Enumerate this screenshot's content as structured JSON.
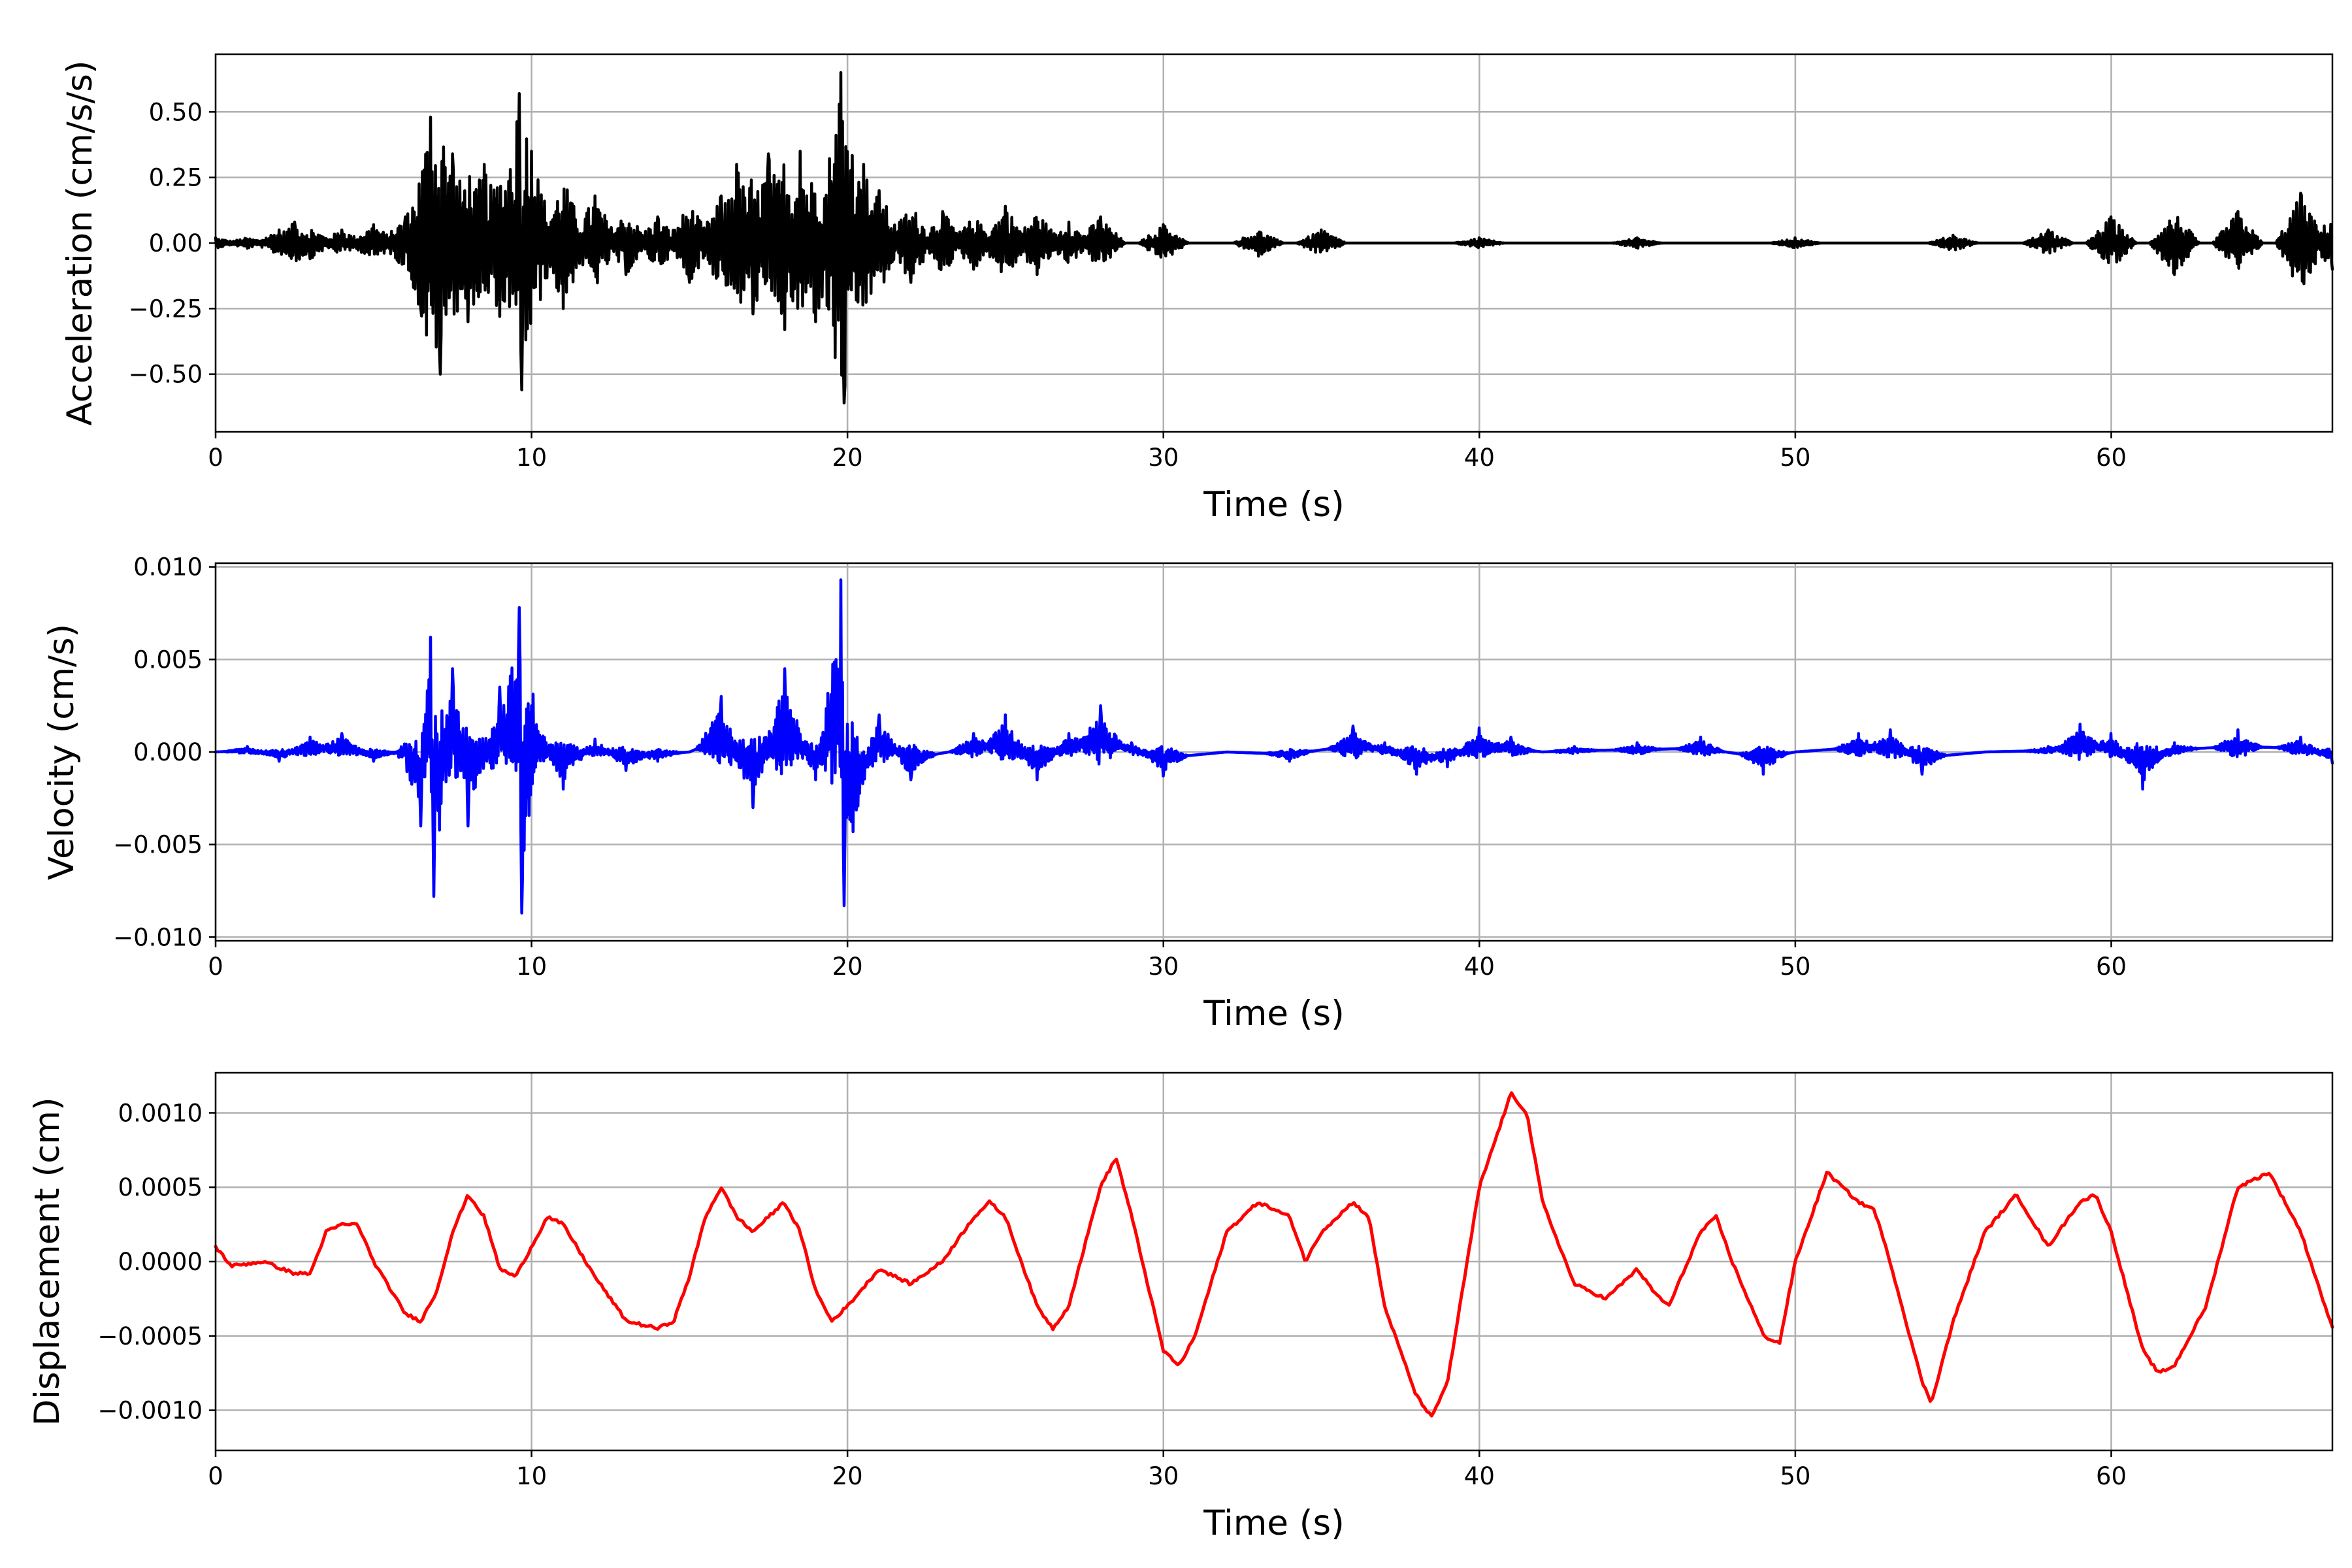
{
  "chart_data": [
    {
      "type": "line",
      "id": "acceleration",
      "xlabel": "Time (s)",
      "ylabel": "Acceleration (cm/s/s)",
      "xlim": [
        0,
        67
      ],
      "ylim": [
        -0.72,
        0.72
      ],
      "xticks": [
        0,
        10,
        20,
        30,
        40,
        50,
        60
      ],
      "xtick_labels": [
        "0",
        "10",
        "20",
        "30",
        "40",
        "50",
        "60"
      ],
      "yticks": [
        -0.5,
        -0.25,
        0.0,
        0.25,
        0.5
      ],
      "ytick_labels": [
        "−0.50",
        "−0.25",
        "0.00",
        "0.25",
        "0.50"
      ],
      "grid": true,
      "color": "#000000",
      "series": [
        {
          "x": [
            0,
            1,
            2,
            2.5,
            3,
            4,
            5,
            6,
            6.5,
            6.8,
            7.1,
            7.5,
            8,
            8.5,
            9,
            9.6,
            9.7,
            10,
            11,
            12,
            13,
            14,
            15,
            16,
            16.5,
            17,
            17.5,
            18,
            18.5,
            19,
            19.5,
            19.8,
            19.9,
            20.5,
            21,
            22,
            23,
            24,
            25,
            26,
            27,
            28,
            30,
            33,
            35,
            40,
            45,
            50,
            55,
            58,
            60,
            62,
            64,
            66,
            67
          ],
          "y": [
            0.02,
            -0.02,
            0.05,
            0.08,
            -0.06,
            0.05,
            0.07,
            0.1,
            -0.25,
            0.48,
            -0.5,
            0.34,
            -0.3,
            0.3,
            -0.28,
            0.57,
            -0.56,
            0.35,
            -0.25,
            0.18,
            -0.12,
            0.1,
            -0.15,
            0.18,
            0.3,
            -0.27,
            0.34,
            -0.33,
            0.35,
            -0.3,
            0.2,
            0.65,
            -0.61,
            0.3,
            0.2,
            -0.15,
            0.12,
            -0.1,
            0.14,
            -0.12,
            0.08,
            0.1,
            0.07,
            -0.05,
            0.05,
            0.02,
            0.02,
            0.02,
            0.03,
            0.05,
            0.1,
            -0.12,
            0.12,
            0.19,
            -0.1
          ]
        }
      ]
    },
    {
      "type": "line",
      "id": "velocity",
      "xlabel": "Time (s)",
      "ylabel": "Velocity (cm/s)",
      "xlim": [
        0,
        67
      ],
      "ylim": [
        -0.0102,
        0.0102
      ],
      "xticks": [
        0,
        10,
        20,
        30,
        40,
        50,
        60
      ],
      "xtick_labels": [
        "0",
        "10",
        "20",
        "30",
        "40",
        "50",
        "60"
      ],
      "yticks": [
        -0.01,
        -0.005,
        0.0,
        0.005,
        0.01
      ],
      "ytick_labels": [
        "−0.010",
        "−0.005",
        "0.000",
        "0.005",
        "0.010"
      ],
      "grid": true,
      "color": "#0000ff",
      "series": [
        {
          "x": [
            0,
            1,
            2,
            3,
            4,
            5,
            6,
            6.5,
            6.8,
            6.9,
            7.5,
            8,
            9,
            9.6,
            9.7,
            10,
            11,
            12,
            13,
            14,
            15,
            16,
            17,
            18,
            19,
            19.8,
            19.9,
            21,
            22,
            24,
            25,
            26,
            27,
            28,
            29,
            30,
            32,
            34,
            36,
            37,
            38,
            39,
            40,
            41,
            42,
            43,
            45,
            47,
            49,
            50,
            52,
            53,
            54,
            56,
            58,
            59,
            60,
            61,
            62,
            64,
            66,
            67
          ],
          "y": [
            0.0,
            0.0003,
            -0.0005,
            0.0008,
            0.001,
            -0.0005,
            0.0,
            -0.004,
            0.0062,
            -0.0078,
            0.0045,
            -0.004,
            0.0035,
            0.0078,
            -0.0087,
            0.0025,
            -0.002,
            0.0007,
            -0.001,
            -0.0005,
            0.0,
            0.003,
            -0.003,
            0.0045,
            -0.0015,
            0.0093,
            -0.0083,
            0.002,
            -0.0015,
            0.001,
            0.002,
            -0.0015,
            0.001,
            0.0025,
            0.0005,
            -0.0013,
            0.0,
            -0.0005,
            0.0014,
            0.0005,
            -0.0012,
            -0.0008,
            0.0013,
            0.0008,
            0.0,
            0.0003,
            0.0005,
            0.0008,
            -0.0012,
            0.0,
            0.001,
            0.0012,
            -0.0012,
            0.0,
            0.0003,
            0.0015,
            0.001,
            -0.002,
            0.0005,
            0.0012,
            0.0008,
            -0.0006
          ]
        }
      ]
    },
    {
      "type": "line",
      "id": "displacement",
      "xlabel": "Time (s)",
      "ylabel": "Displacement (cm)",
      "xlim": [
        0,
        67
      ],
      "ylim": [
        -0.00127,
        0.00127
      ],
      "xticks": [
        0,
        10,
        20,
        30,
        40,
        50,
        60
      ],
      "xtick_labels": [
        "0",
        "10",
        "20",
        "30",
        "40",
        "50",
        "60"
      ],
      "yticks": [
        -0.001,
        -0.0005,
        0.0,
        0.0005,
        0.001
      ],
      "ytick_labels": [
        "−0.0010",
        "−0.0005",
        "0.0000",
        "0.0005",
        "0.0010"
      ],
      "grid": true,
      "color": "#ff0000",
      "series": [
        {
          "x": [
            0,
            0.5,
            1.5,
            2.5,
            3,
            3.5,
            4,
            4.5,
            5,
            6,
            6.5,
            7,
            7.5,
            8,
            8.5,
            9,
            9.5,
            10,
            10.5,
            11,
            12,
            13,
            14,
            14.5,
            15,
            15.5,
            16,
            16.5,
            17,
            17.5,
            18,
            18.5,
            19,
            19.5,
            20,
            21,
            22,
            23,
            24,
            24.5,
            25,
            26,
            26.5,
            27,
            28,
            28.5,
            29,
            30,
            30.5,
            31,
            32,
            33,
            34,
            34.5,
            35,
            35.5,
            36,
            36.5,
            37,
            38,
            38.5,
            39,
            40,
            41,
            41.5,
            42,
            43,
            44,
            44.5,
            45,
            45.5,
            46,
            47,
            47.5,
            48,
            49,
            49.5,
            50,
            51,
            52,
            52.5,
            53,
            54,
            54.3,
            55,
            56,
            57,
            58,
            59,
            59.5,
            60,
            61,
            61.5,
            62,
            63,
            64,
            65,
            66,
            67
          ],
          "y": [
            0.0001,
            -3e-05,
            0.0,
            -8e-05,
            -8e-05,
            0.0002,
            0.00025,
            0.00025,
            0.0,
            -0.00035,
            -0.0004,
            -0.0002,
            0.0002,
            0.00045,
            0.0003,
            -5e-05,
            -0.0001,
            0.0001,
            0.0003,
            0.00025,
            -0.0001,
            -0.0004,
            -0.00045,
            -0.0004,
            -0.0001,
            0.0003,
            0.0005,
            0.0003,
            0.0002,
            0.0003,
            0.0004,
            0.0002,
            -0.0002,
            -0.0004,
            -0.0003,
            -5e-05,
            -0.00015,
            0.0,
            0.0003,
            0.0004,
            0.0003,
            -0.0003,
            -0.00045,
            -0.0003,
            0.0005,
            0.0007,
            0.0003,
            -0.0006,
            -0.0007,
            -0.0005,
            0.0002,
            0.0004,
            0.0003,
            0.0,
            0.0002,
            0.0003,
            0.0004,
            0.0003,
            -0.0003,
            -0.0009,
            -0.00105,
            -0.0008,
            0.0005,
            0.00113,
            0.001,
            0.0004,
            -0.00015,
            -0.00025,
            -0.00015,
            -5e-05,
            -0.0002,
            -0.0003,
            0.0002,
            0.0003,
            0.0,
            -0.0005,
            -0.00055,
            0.0,
            0.0006,
            0.0004,
            0.00035,
            0.0,
            -0.0008,
            -0.00095,
            -0.0004,
            0.0002,
            0.00045,
            0.0001,
            0.0004,
            0.00045,
            0.0002,
            -0.0006,
            -0.00075,
            -0.0007,
            -0.0003,
            0.0005,
            0.0006,
            0.0002,
            -0.00045
          ]
        }
      ]
    }
  ]
}
